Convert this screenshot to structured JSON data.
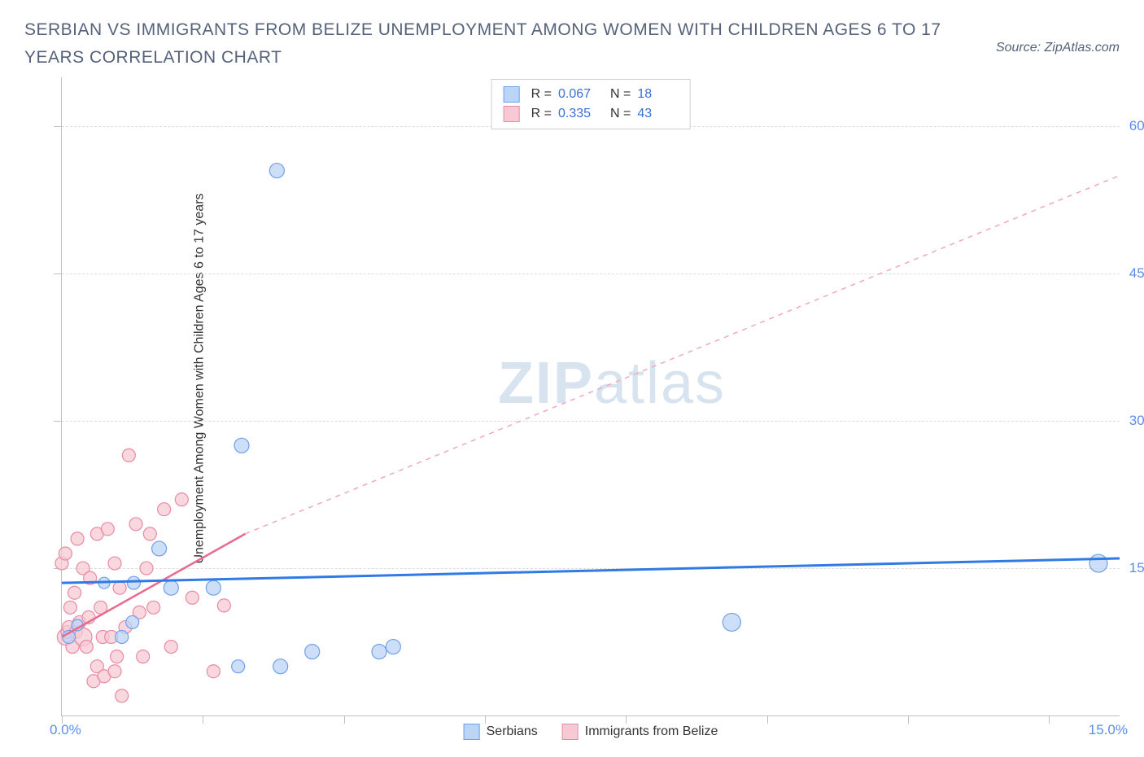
{
  "title": "SERBIAN VS IMMIGRANTS FROM BELIZE UNEMPLOYMENT AMONG WOMEN WITH CHILDREN AGES 6 TO 17 YEARS CORRELATION CHART",
  "source": "Source: ZipAtlas.com",
  "ylabel": "Unemployment Among Women with Children Ages 6 to 17 years",
  "watermark": {
    "bold": "ZIP",
    "rest": "atlas"
  },
  "chart": {
    "type": "scatter",
    "x_range": [
      0,
      15
    ],
    "y_range": [
      0,
      65
    ],
    "x_ticks": [
      0,
      2,
      4,
      6,
      8,
      10,
      12,
      14
    ],
    "y_ticks": [
      15,
      30,
      45,
      60
    ],
    "x_tick_labels": {
      "min": "0.0%",
      "max": "15.0%"
    },
    "y_tick_labels": [
      "15.0%",
      "30.0%",
      "45.0%",
      "60.0%"
    ],
    "grid_color": "#dcdcdc",
    "axis_color": "#c0c0c0",
    "tick_label_color": "#5b8def",
    "series": [
      {
        "name": "Serbians",
        "color_fill": "#bcd4f5",
        "color_stroke": "#6fa0e8",
        "marker_radius": 9,
        "R": "0.067",
        "N": "18",
        "regression": {
          "x1": 0,
          "y1": 13.5,
          "x2": 15,
          "y2": 16.0,
          "stroke": "#2f7ae5",
          "width": 3
        },
        "points": [
          [
            3.05,
            55.5,
            9
          ],
          [
            2.55,
            27.5,
            9
          ],
          [
            1.38,
            17.0,
            9
          ],
          [
            0.1,
            8.0,
            8
          ],
          [
            0.85,
            8.0,
            8
          ],
          [
            0.22,
            9.2,
            7
          ],
          [
            1.0,
            9.5,
            8
          ],
          [
            1.55,
            13.0,
            9
          ],
          [
            1.02,
            13.5,
            8
          ],
          [
            2.15,
            13.0,
            9
          ],
          [
            3.1,
            5.0,
            9
          ],
          [
            2.5,
            5.0,
            8
          ],
          [
            3.55,
            6.5,
            9
          ],
          [
            4.5,
            6.5,
            9
          ],
          [
            4.7,
            7.0,
            9
          ],
          [
            9.5,
            9.5,
            11
          ],
          [
            14.7,
            15.5,
            11
          ],
          [
            0.6,
            13.5,
            7
          ]
        ]
      },
      {
        "name": "Immigrants from Belize",
        "color_fill": "#f7c9d4",
        "color_stroke": "#e98aa3",
        "marker_radius": 8,
        "R": "0.335",
        "N": "43",
        "regression_solid": {
          "x1": 0,
          "y1": 8.0,
          "x2": 2.6,
          "y2": 18.5,
          "stroke": "#e76a8f",
          "width": 2.5
        },
        "regression_dashed": {
          "x1": 2.6,
          "y1": 18.5,
          "x2": 15,
          "y2": 55.0,
          "stroke": "#f0a8bc",
          "width": 1.5,
          "dash": "6,6"
        },
        "points": [
          [
            0.0,
            15.5,
            8
          ],
          [
            0.05,
            16.5,
            8
          ],
          [
            0.05,
            8.0,
            10
          ],
          [
            0.08,
            8.5,
            8
          ],
          [
            0.1,
            9.0,
            8
          ],
          [
            0.12,
            11.0,
            8
          ],
          [
            0.15,
            7.0,
            8
          ],
          [
            0.18,
            12.5,
            8
          ],
          [
            0.2,
            8.5,
            8
          ],
          [
            0.22,
            18.0,
            8
          ],
          [
            0.25,
            9.5,
            8
          ],
          [
            0.3,
            8.0,
            11
          ],
          [
            0.3,
            15.0,
            8
          ],
          [
            0.35,
            7.0,
            8
          ],
          [
            0.38,
            10.0,
            8
          ],
          [
            0.4,
            14.0,
            8
          ],
          [
            0.45,
            3.5,
            8
          ],
          [
            0.5,
            5.0,
            8
          ],
          [
            0.5,
            18.5,
            8
          ],
          [
            0.55,
            11.0,
            8
          ],
          [
            0.58,
            8.0,
            8
          ],
          [
            0.6,
            4.0,
            8
          ],
          [
            0.65,
            19.0,
            8
          ],
          [
            0.7,
            8.0,
            8
          ],
          [
            0.75,
            15.5,
            8
          ],
          [
            0.75,
            4.5,
            8
          ],
          [
            0.78,
            6.0,
            8
          ],
          [
            0.82,
            13.0,
            8
          ],
          [
            0.85,
            2.0,
            8
          ],
          [
            0.9,
            9.0,
            8
          ],
          [
            0.95,
            26.5,
            8
          ],
          [
            1.05,
            19.5,
            8
          ],
          [
            1.1,
            10.5,
            8
          ],
          [
            1.15,
            6.0,
            8
          ],
          [
            1.2,
            15.0,
            8
          ],
          [
            1.25,
            18.5,
            8
          ],
          [
            1.3,
            11.0,
            8
          ],
          [
            1.45,
            21.0,
            8
          ],
          [
            1.55,
            7.0,
            8
          ],
          [
            1.7,
            22.0,
            8
          ],
          [
            1.85,
            12.0,
            8
          ],
          [
            2.15,
            4.5,
            8
          ],
          [
            2.3,
            11.2,
            8
          ]
        ]
      }
    ]
  }
}
